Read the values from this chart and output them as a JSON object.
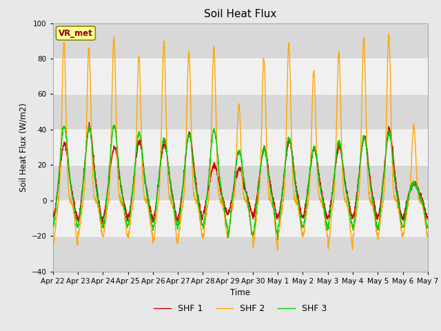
{
  "title": "Soil Heat Flux",
  "ylabel": "Soil Heat Flux (W/m2)",
  "xlabel": "Time",
  "ylim": [
    -40,
    100
  ],
  "yticks": [
    -40,
    -20,
    0,
    20,
    40,
    60,
    80,
    100
  ],
  "background_color": "#e8e8e8",
  "plot_bg_color": "#e8e8e8",
  "band_light": "#f0f0f0",
  "band_dark": "#d8d8d8",
  "shf1_color": "#cc0000",
  "shf2_color": "#ffa500",
  "shf3_color": "#00cc00",
  "legend_labels": [
    "SHF 1",
    "SHF 2",
    "SHF 3"
  ],
  "annotation_text": "VR_met",
  "annotation_color": "#8b0000",
  "annotation_bg": "#ffff99",
  "num_days": 15,
  "tick_labels": [
    "Apr 22",
    "Apr 23",
    "Apr 24",
    "Apr 25",
    "Apr 26",
    "Apr 27",
    "Apr 28",
    "Apr 29",
    "Apr 30",
    "May 1",
    "May 2",
    "May 3",
    "May 4",
    "May 5",
    "May 6",
    "May 7"
  ],
  "shf2_day_peaks": [
    89,
    86,
    92,
    81,
    89,
    84,
    86,
    54,
    80,
    88,
    73,
    84,
    91,
    93,
    42
  ],
  "shf1_day_peaks": [
    32,
    41,
    30,
    33,
    32,
    38,
    20,
    18,
    29,
    34,
    29,
    30,
    36,
    40,
    10
  ],
  "shf3_day_peaks": [
    42,
    41,
    42,
    38,
    35,
    37,
    40,
    28,
    29,
    35,
    30,
    33,
    36,
    38,
    10
  ],
  "shf2_night_troughs": [
    -25,
    -20,
    -20,
    -20,
    -24,
    -20,
    -20,
    -20,
    -26,
    -20,
    -20,
    -26,
    -20,
    -20,
    -20
  ],
  "shf1_night_troughs": [
    -10,
    -12,
    -10,
    -10,
    -12,
    -10,
    -8,
    -8,
    -10,
    -10,
    -10,
    -10,
    -10,
    -10,
    -10
  ],
  "shf3_night_troughs": [
    -15,
    -15,
    -15,
    -14,
    -16,
    -14,
    -15,
    -20,
    -20,
    -15,
    -15,
    -15,
    -16,
    -15,
    -15
  ],
  "line_width": 1.0
}
